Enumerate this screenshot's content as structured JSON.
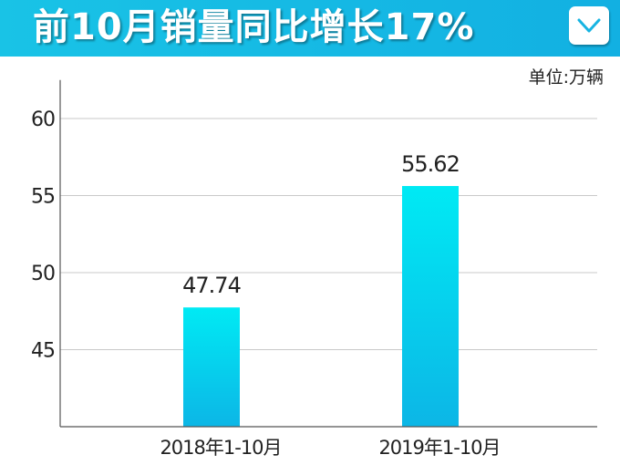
{
  "header": {
    "title": "前10月销量同比增长17%",
    "background": "#19c3e6",
    "dropdown_icon": "chevron-down-icon"
  },
  "unit_label": "单位:万辆",
  "chart_data": {
    "type": "bar",
    "categories": [
      "2018年1-10月",
      "2019年1-10月"
    ],
    "values": [
      47.74,
      55.62
    ],
    "data_labels": [
      "47.74",
      "55.62"
    ],
    "ylim": [
      40,
      62.5
    ],
    "yticks": [
      45,
      50,
      55,
      60
    ],
    "grid": true,
    "bar_gradient": [
      "#00eaf4",
      "#0cb6e6"
    ],
    "title": "",
    "xlabel": "",
    "ylabel": ""
  }
}
